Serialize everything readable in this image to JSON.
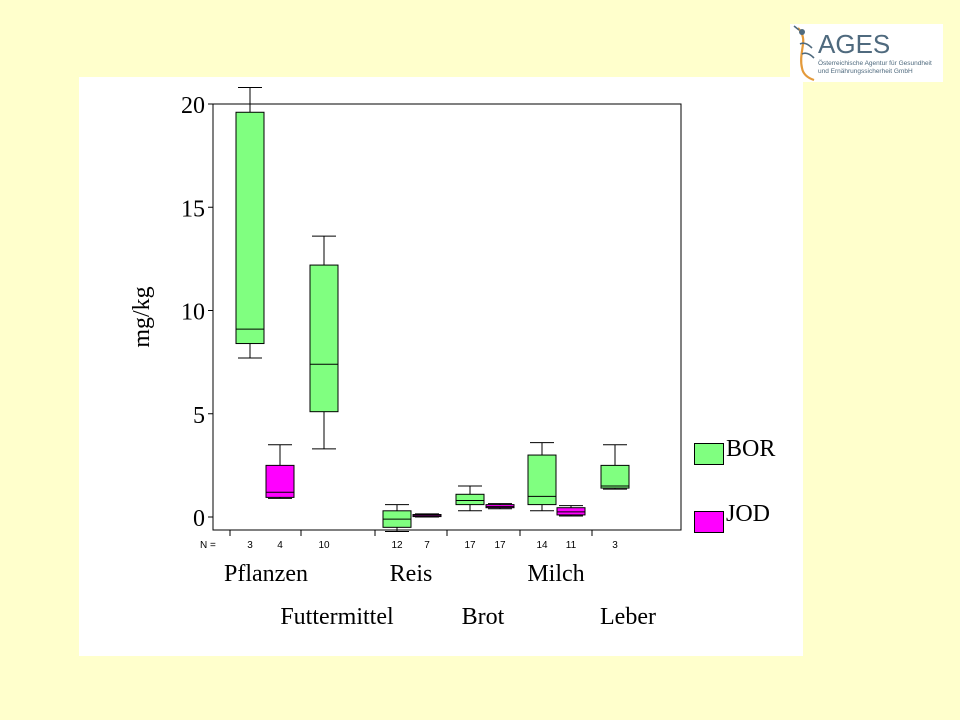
{
  "logo": {
    "name": "AGES",
    "subtitle_line1": "Österreichische Agentur für Gesundheit",
    "subtitle_line2": "und Ernährungssicherheit GmbH"
  },
  "chart_data": {
    "type": "box",
    "ylabel": "mg/kg",
    "ylim": [
      0,
      20
    ],
    "yticks": [
      0,
      5,
      10,
      15,
      20
    ],
    "n_prefix": "N =",
    "colors": {
      "BOR": "#80ff80",
      "JOD": "#ff00ff"
    },
    "legend": [
      {
        "name": "BOR",
        "color": "#80ff80"
      },
      {
        "name": "JOD",
        "color": "#ff00ff"
      }
    ],
    "category_labels_row1": [
      "Pflanzen",
      "Reis",
      "Milch"
    ],
    "category_labels_row2": [
      "Futtermittel",
      "Brot",
      "Leber"
    ],
    "boxes": [
      {
        "category": "Pflanzen",
        "series": "BOR",
        "n": 3,
        "min": 7.7,
        "q1": 8.4,
        "median": 9.1,
        "q3": 19.6,
        "max": 20.8
      },
      {
        "category": "Pflanzen",
        "series": "JOD",
        "n": 4,
        "min": 0.9,
        "q1": 0.95,
        "median": 1.2,
        "q3": 2.5,
        "max": 3.5
      },
      {
        "category": "Futtermittel",
        "series": "BOR",
        "n": 10,
        "min": 3.3,
        "q1": 5.1,
        "median": 7.4,
        "q3": 12.2,
        "max": 13.6
      },
      {
        "category": "Futtermittel",
        "series": "JOD",
        "n": null,
        "min": null,
        "q1": null,
        "median": null,
        "q3": null,
        "max": null
      },
      {
        "category": "Reis",
        "series": "BOR",
        "n": 12,
        "min": -0.7,
        "q1": -0.5,
        "median": -0.1,
        "q3": 0.3,
        "max": 0.6
      },
      {
        "category": "Reis",
        "series": "JOD",
        "n": 7,
        "min": 0.0,
        "q1": 0.02,
        "median": 0.06,
        "q3": 0.12,
        "max": 0.15
      },
      {
        "category": "Brot",
        "series": "BOR",
        "n": 17,
        "min": 0.3,
        "q1": 0.6,
        "median": 0.8,
        "q3": 1.1,
        "max": 1.5
      },
      {
        "category": "Brot",
        "series": "JOD",
        "n": 17,
        "min": 0.4,
        "q1": 0.45,
        "median": 0.5,
        "q3": 0.6,
        "max": 0.65
      },
      {
        "category": "Milch",
        "series": "BOR",
        "n": 14,
        "min": 0.3,
        "q1": 0.6,
        "median": 1.0,
        "q3": 3.0,
        "max": 3.6
      },
      {
        "category": "Milch",
        "series": "JOD",
        "n": 11,
        "min": 0.05,
        "q1": 0.1,
        "median": 0.25,
        "q3": 0.45,
        "max": 0.55
      },
      {
        "category": "Leber",
        "series": "BOR",
        "n": 3,
        "min": 1.35,
        "q1": 1.4,
        "median": 1.5,
        "q3": 2.5,
        "max": 3.5
      }
    ]
  }
}
